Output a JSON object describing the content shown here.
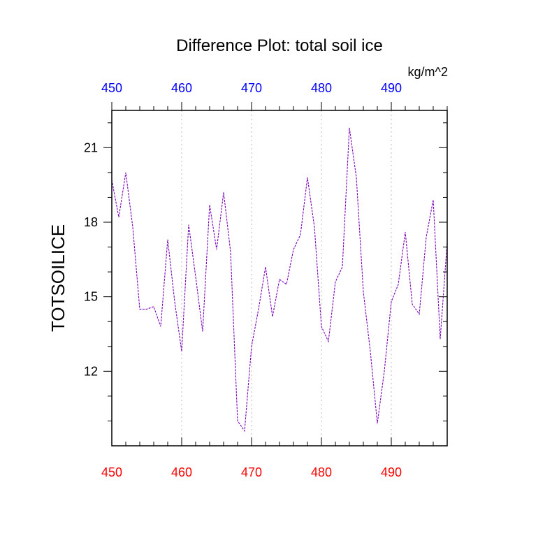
{
  "chart_data": {
    "type": "line",
    "title": "Difference Plot: total soil ice",
    "units_label": "kg/m^2",
    "ylabel": "TOTSOILICE",
    "xlim": [
      450,
      498
    ],
    "ylim": [
      9.0,
      22.5
    ],
    "x_ticks": [
      "450",
      "460",
      "470",
      "480",
      "490"
    ],
    "x_tick_values": [
      450,
      460,
      470,
      480,
      490
    ],
    "y_ticks": [
      "12",
      "15",
      "18",
      "21"
    ],
    "y_tick_values": [
      12,
      15,
      18,
      21
    ],
    "grid": "vertical dotted at major x ticks",
    "colors": {
      "top_tick_labels": "#0000ff",
      "bottom_tick_labels": "#ff0000",
      "series_line": "#7a00b8",
      "grid": "#c8c8c8",
      "axis": "#000000"
    },
    "series": [
      {
        "x": [
          450,
          451,
          452,
          453,
          454,
          455,
          456,
          457,
          458,
          459,
          460,
          461,
          462,
          463,
          464,
          465,
          466,
          467,
          468,
          469,
          470,
          471,
          472,
          473,
          474,
          475,
          476,
          477,
          478,
          479,
          480,
          481,
          482,
          483,
          484,
          485,
          486,
          487,
          488,
          489,
          490,
          491,
          492,
          493,
          494,
          495,
          496,
          497,
          498
        ],
        "values": [
          19.7,
          18.2,
          20.0,
          17.8,
          14.5,
          14.5,
          14.6,
          13.8,
          17.3,
          14.8,
          12.8,
          17.9,
          15.8,
          13.6,
          18.7,
          16.9,
          19.2,
          16.8,
          10.0,
          9.6,
          13.0,
          14.5,
          16.2,
          14.2,
          15.7,
          15.5,
          16.9,
          17.5,
          19.8,
          17.8,
          13.8,
          13.2,
          15.6,
          16.2,
          21.8,
          19.8,
          15.2,
          12.8,
          9.9,
          12.0,
          14.8,
          15.5,
          17.6,
          14.7,
          14.3,
          17.4,
          18.9,
          13.3,
          17.2
        ]
      }
    ]
  }
}
